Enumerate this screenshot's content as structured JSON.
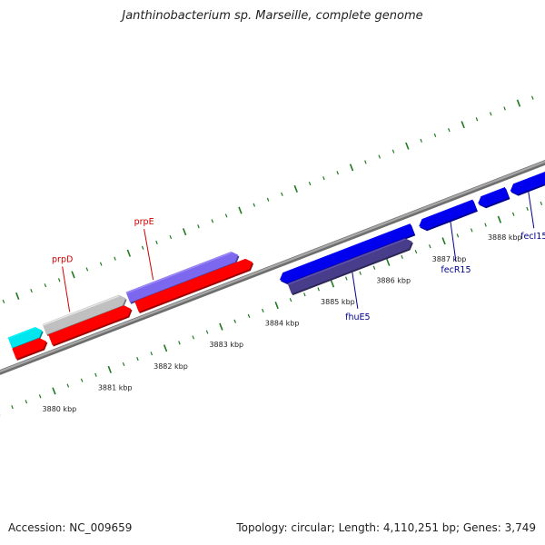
{
  "title": "Janthinobacterium sp. Marseille, complete genome",
  "footer": {
    "accession": "Accession: NC_009659",
    "summary": "Topology: circular; Length: 4,110,251 bp; Genes: 3,749"
  },
  "colors": {
    "backbone": "#8c8c8c",
    "ticks": "#1f7a1f",
    "gene_label_red": "#cc0000",
    "gene_label_blue": "#00008b"
  },
  "scale": {
    "unit": "kbp",
    "labels": [
      "3880 kbp",
      "3881 kbp",
      "3882 kbp",
      "3883 kbp",
      "3884 kbp",
      "3885 kbp",
      "3886 kbp",
      "3887 kbp",
      "3888 kbp"
    ]
  },
  "genes": [
    {
      "id": "f1",
      "label": "",
      "start": 3879.6,
      "end": 3880.18,
      "track": "fwd-outer",
      "color": "#00e5ee",
      "dir": 1
    },
    {
      "id": "prpD",
      "label": "prpD",
      "start": 3880.22,
      "end": 3881.68,
      "track": "fwd-outer",
      "color": "#c0c0c0",
      "dir": 1
    },
    {
      "id": "prpE",
      "label": "prpE",
      "start": 3881.72,
      "end": 3883.7,
      "track": "fwd-outer",
      "color": "#7b68ee",
      "dir": 1
    },
    {
      "id": "r1",
      "label": "",
      "start": 3879.6,
      "end": 3880.18,
      "track": "fwd-inner",
      "color": "#ff0000",
      "dir": 1
    },
    {
      "id": "r2",
      "label": "",
      "start": 3880.25,
      "end": 3881.7,
      "track": "fwd-inner",
      "color": "#ff0000",
      "dir": 1
    },
    {
      "id": "r3",
      "label": "",
      "start": 3881.8,
      "end": 3883.88,
      "track": "fwd-inner",
      "color": "#ff0000",
      "dir": 1
    },
    {
      "id": "b1",
      "label": "",
      "start": 3884.2,
      "end": 3886.58,
      "track": "rev-outer",
      "color": "#0000ee",
      "dir": -1
    },
    {
      "id": "fhuE5",
      "label": "fhuE5",
      "start": 3884.3,
      "end": 3886.5,
      "track": "rev-inner",
      "color": "#483d8b",
      "dir": 1
    },
    {
      "id": "fecR15",
      "label": "fecR15",
      "start": 3886.7,
      "end": 3887.7,
      "track": "rev-outer",
      "color": "#0000ee",
      "dir": -1
    },
    {
      "id": "b3",
      "label": "",
      "start": 3887.76,
      "end": 3888.28,
      "track": "rev-outer",
      "color": "#0000ee",
      "dir": -1
    },
    {
      "id": "fecI15",
      "label": "fecI15",
      "start": 3888.34,
      "end": 3889.1,
      "track": "rev-outer",
      "color": "#0000ee",
      "dir": -1
    }
  ]
}
